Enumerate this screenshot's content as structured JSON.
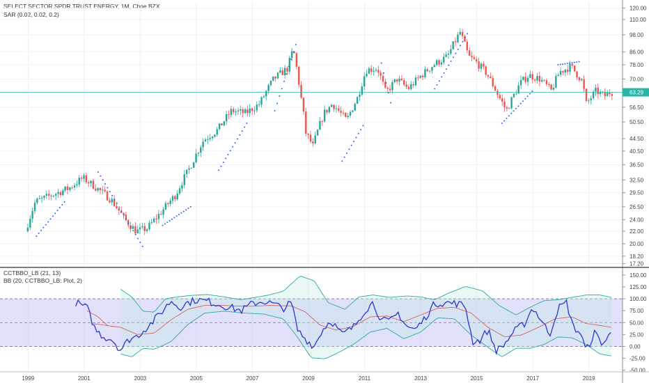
{
  "header": {
    "title": "SELECT SECTOR SPDR TRUST ENERGY, 1M, Cboe BZX",
    "sar_label": "SAR (0.02, 0.02, 0.2)",
    "osc_label": "CCTBBO_LB (21, 13)",
    "bb_label": "BB (20, CCTBBO_LB: Plot, 2)"
  },
  "last_price": "63.29",
  "colors": {
    "up": "#26a69a",
    "down": "#ef5350",
    "sar": "#2962ff",
    "osc_line": "#2f35c9",
    "bb_upper": "#2aa8a8",
    "bb_mid": "#d9534f",
    "band_fill": "#c9c9f7",
    "price_line": "#2bb5a9"
  },
  "chart_data": [
    {
      "type": "candlestick",
      "title": "SELECT SECTOR SPDR TRUST ENERGY, 1M, Cboe BZX",
      "x_ticks": [
        "1999",
        "2001",
        "2003",
        "2005",
        "2007",
        "2009",
        "2011",
        "2013",
        "2015",
        "2017",
        "2019"
      ],
      "y_ticks": [
        "120.00",
        "110.00",
        "98.00",
        "86.00",
        "78.00",
        "70.00",
        "63.29",
        "56.50",
        "50.50",
        "44.50",
        "40.50",
        "36.50",
        "32.50",
        "29.50",
        "26.50",
        "24.00",
        "22.00",
        "20.00",
        "18.20",
        "17.20"
      ],
      "y_scale": "log",
      "ylim": [
        16.8,
        125
      ],
      "xlim": [
        1998.0,
        2020.2
      ],
      "series": [
        {
          "name": "price",
          "keypoints": [
            [
              1998.95,
              22.0
            ],
            [
              1999.3,
              27.5
            ],
            [
              1999.9,
              29.0
            ],
            [
              2000.5,
              30.5
            ],
            [
              2001.0,
              33.0
            ],
            [
              2001.5,
              30.5
            ],
            [
              2002.0,
              28.0
            ],
            [
              2002.5,
              24.0
            ],
            [
              2002.9,
              22.0
            ],
            [
              2003.3,
              22.5
            ],
            [
              2003.8,
              25.5
            ],
            [
              2004.3,
              29.0
            ],
            [
              2004.8,
              35.5
            ],
            [
              2005.3,
              44.0
            ],
            [
              2005.8,
              47.5
            ],
            [
              2006.3,
              55.0
            ],
            [
              2006.8,
              54.0
            ],
            [
              2007.3,
              58.0
            ],
            [
              2007.8,
              70.0
            ],
            [
              2008.3,
              76.0
            ],
            [
              2008.5,
              88.0
            ],
            [
              2008.75,
              63.0
            ],
            [
              2008.95,
              46.5
            ],
            [
              2009.2,
              42.0
            ],
            [
              2009.6,
              54.0
            ],
            [
              2009.9,
              58.0
            ],
            [
              2010.4,
              51.0
            ],
            [
              2010.8,
              61.0
            ],
            [
              2011.1,
              75.0
            ],
            [
              2011.5,
              76.0
            ],
            [
              2011.8,
              63.0
            ],
            [
              2012.2,
              70.0
            ],
            [
              2012.6,
              65.0
            ],
            [
              2013.0,
              71.0
            ],
            [
              2013.5,
              78.0
            ],
            [
              2014.0,
              83.0
            ],
            [
              2014.45,
              100.0
            ],
            [
              2014.75,
              83.0
            ],
            [
              2015.0,
              80.0
            ],
            [
              2015.4,
              73.0
            ],
            [
              2015.8,
              62.0
            ],
            [
              2016.1,
              55.0
            ],
            [
              2016.6,
              68.0
            ],
            [
              2016.9,
              72.0
            ],
            [
              2017.3,
              70.0
            ],
            [
              2017.7,
              64.0
            ],
            [
              2018.0,
              74.0
            ],
            [
              2018.4,
              77.0
            ],
            [
              2018.8,
              69.0
            ],
            [
              2018.95,
              58.0
            ],
            [
              2019.3,
              64.0
            ],
            [
              2019.6,
              61.5
            ],
            [
              2019.8,
              63.29
            ]
          ]
        },
        {
          "name": "SAR",
          "keypoints": [
            [
              1999.3,
              21.2
            ],
            [
              2000.3,
              27.5
            ],
            [
              2001.5,
              34.5
            ],
            [
              2003.1,
              19.5
            ],
            [
              2003.8,
              23.0
            ],
            [
              2004.8,
              26.5
            ],
            [
              2005.8,
              35.0
            ],
            [
              2006.8,
              50.0
            ],
            [
              2007.8,
              55.0
            ],
            [
              2008.55,
              91.0
            ],
            [
              2010.2,
              37.5
            ],
            [
              2011.0,
              50.0
            ],
            [
              2011.6,
              79.0
            ],
            [
              2012.0,
              55.0
            ],
            [
              2013.5,
              65.0
            ],
            [
              2014.7,
              100.0
            ],
            [
              2015.9,
              50.0
            ],
            [
              2017.0,
              64.0
            ],
            [
              2017.9,
              78.0
            ],
            [
              2018.7,
              80.0
            ],
            [
              2019.7,
              67.0
            ]
          ]
        }
      ]
    },
    {
      "type": "line",
      "title": "CCTBBO_LB (21, 13)",
      "y_ticks": [
        "150.00",
        "125.00",
        "100.00",
        "75.00",
        "50.00",
        "25.00",
        "0.00",
        "-25.00",
        "-50.00"
      ],
      "ylim": [
        -52,
        163
      ],
      "reference_lines": [
        100,
        50,
        0
      ],
      "series": [
        {
          "name": "CCTBBO_LB",
          "keypoints": [
            [
              2000.7,
              92
            ],
            [
              2001.1,
              82
            ],
            [
              2001.4,
              35
            ],
            [
              2001.7,
              20
            ],
            [
              2002.0,
              15
            ],
            [
              2002.3,
              -8
            ],
            [
              2002.6,
              15
            ],
            [
              2002.9,
              22
            ],
            [
              2003.2,
              38
            ],
            [
              2003.5,
              55
            ],
            [
              2003.8,
              75
            ],
            [
              2004.1,
              96
            ],
            [
              2004.4,
              82
            ],
            [
              2004.7,
              92
            ],
            [
              2005.0,
              98
            ],
            [
              2005.4,
              95
            ],
            [
              2005.8,
              88
            ],
            [
              2006.2,
              82
            ],
            [
              2006.6,
              75
            ],
            [
              2007.0,
              90
            ],
            [
              2007.4,
              95
            ],
            [
              2007.8,
              88
            ],
            [
              2008.1,
              80
            ],
            [
              2008.4,
              92
            ],
            [
              2008.6,
              35
            ],
            [
              2008.9,
              15
            ],
            [
              2009.2,
              0
            ],
            [
              2009.5,
              35
            ],
            [
              2009.8,
              55
            ],
            [
              2010.2,
              25
            ],
            [
              2010.6,
              40
            ],
            [
              2011.0,
              75
            ],
            [
              2011.3,
              92
            ],
            [
              2011.6,
              55
            ],
            [
              2011.9,
              52
            ],
            [
              2012.2,
              70
            ],
            [
              2012.5,
              42
            ],
            [
              2012.8,
              35
            ],
            [
              2013.1,
              55
            ],
            [
              2013.5,
              90
            ],
            [
              2013.9,
              92
            ],
            [
              2014.3,
              90
            ],
            [
              2014.6,
              85
            ],
            [
              2014.85,
              10
            ],
            [
              2015.1,
              12
            ],
            [
              2015.4,
              35
            ],
            [
              2015.7,
              -10
            ],
            [
              2016.0,
              5
            ],
            [
              2016.3,
              30
            ],
            [
              2016.7,
              48
            ],
            [
              2017.0,
              82
            ],
            [
              2017.3,
              55
            ],
            [
              2017.6,
              25
            ],
            [
              2017.9,
              80
            ],
            [
              2018.2,
              92
            ],
            [
              2018.45,
              40
            ],
            [
              2018.7,
              28
            ],
            [
              2018.9,
              -10
            ],
            [
              2019.2,
              28
            ],
            [
              2019.5,
              5
            ],
            [
              2019.8,
              28
            ]
          ]
        },
        {
          "name": "BB upper",
          "keypoints": [
            [
              2002.3,
              120
            ],
            [
              2002.7,
              104
            ],
            [
              2003.1,
              74
            ],
            [
              2003.5,
              72
            ],
            [
              2003.9,
              100
            ],
            [
              2004.3,
              104
            ],
            [
              2004.8,
              107
            ],
            [
              2005.4,
              109
            ],
            [
              2006.0,
              104
            ],
            [
              2006.6,
              98
            ],
            [
              2007.1,
              103
            ],
            [
              2007.6,
              108
            ],
            [
              2008.1,
              116
            ],
            [
              2008.7,
              148
            ],
            [
              2009.2,
              138
            ],
            [
              2009.7,
              92
            ],
            [
              2010.3,
              78
            ],
            [
              2010.8,
              104
            ],
            [
              2011.3,
              108
            ],
            [
              2011.9,
              103
            ],
            [
              2012.5,
              106
            ],
            [
              2013.0,
              104
            ],
            [
              2013.5,
              98
            ],
            [
              2014.0,
              112
            ],
            [
              2014.6,
              126
            ],
            [
              2015.2,
              117
            ],
            [
              2015.8,
              86
            ],
            [
              2016.4,
              66
            ],
            [
              2016.9,
              82
            ],
            [
              2017.4,
              96
            ],
            [
              2017.9,
              98
            ],
            [
              2018.4,
              103
            ],
            [
              2018.9,
              108
            ],
            [
              2019.4,
              108
            ],
            [
              2019.8,
              103
            ]
          ]
        },
        {
          "name": "BB basis",
          "keypoints": [
            [
              2001.3,
              48
            ],
            [
              2002.3,
              40
            ],
            [
              2002.9,
              25
            ],
            [
              2003.5,
              28
            ],
            [
              2004.1,
              56
            ],
            [
              2004.7,
              78
            ],
            [
              2005.3,
              86
            ],
            [
              2006.0,
              86
            ],
            [
              2006.8,
              84
            ],
            [
              2007.6,
              86
            ],
            [
              2008.4,
              85
            ],
            [
              2008.9,
              72
            ],
            [
              2009.4,
              45
            ],
            [
              2010.0,
              34
            ],
            [
              2010.6,
              42
            ],
            [
              2011.2,
              62
            ],
            [
              2011.8,
              64
            ],
            [
              2012.4,
              52
            ],
            [
              2013.0,
              66
            ],
            [
              2013.6,
              80
            ],
            [
              2014.2,
              82
            ],
            [
              2014.8,
              70
            ],
            [
              2015.4,
              40
            ],
            [
              2016.0,
              20
            ],
            [
              2016.6,
              24
            ],
            [
              2017.2,
              40
            ],
            [
              2017.8,
              58
            ],
            [
              2018.4,
              62
            ],
            [
              2018.9,
              48
            ],
            [
              2019.4,
              44
            ],
            [
              2019.8,
              40
            ]
          ]
        },
        {
          "name": "BB lower",
          "keypoints": [
            [
              2002.3,
              -16
            ],
            [
              2002.7,
              -22
            ],
            [
              2003.1,
              -4
            ],
            [
              2003.5,
              -6
            ],
            [
              2004.1,
              10
            ],
            [
              2004.7,
              46
            ],
            [
              2005.3,
              70
            ],
            [
              2006.0,
              74
            ],
            [
              2006.7,
              70
            ],
            [
              2007.4,
              68
            ],
            [
              2008.1,
              58
            ],
            [
              2008.6,
              20
            ],
            [
              2009.1,
              -24
            ],
            [
              2009.6,
              -26
            ],
            [
              2010.1,
              -12
            ],
            [
              2010.6,
              4
            ],
            [
              2011.2,
              30
            ],
            [
              2011.8,
              38
            ],
            [
              2012.4,
              16
            ],
            [
              2013.0,
              30
            ],
            [
              2013.6,
              60
            ],
            [
              2014.2,
              58
            ],
            [
              2014.8,
              24
            ],
            [
              2015.4,
              -2
            ],
            [
              2015.9,
              -22
            ],
            [
              2016.4,
              -4
            ],
            [
              2016.9,
              -4
            ],
            [
              2017.4,
              4
            ],
            [
              2017.9,
              20
            ],
            [
              2018.4,
              18
            ],
            [
              2018.9,
              4
            ],
            [
              2019.4,
              -16
            ],
            [
              2019.8,
              -20
            ]
          ]
        },
        {
          "name": "guide",
          "keypoints": [
            [
              2001.1,
              75
            ],
            [
              2001.5,
              62
            ],
            [
              2001.9,
              40
            ]
          ]
        }
      ]
    }
  ]
}
